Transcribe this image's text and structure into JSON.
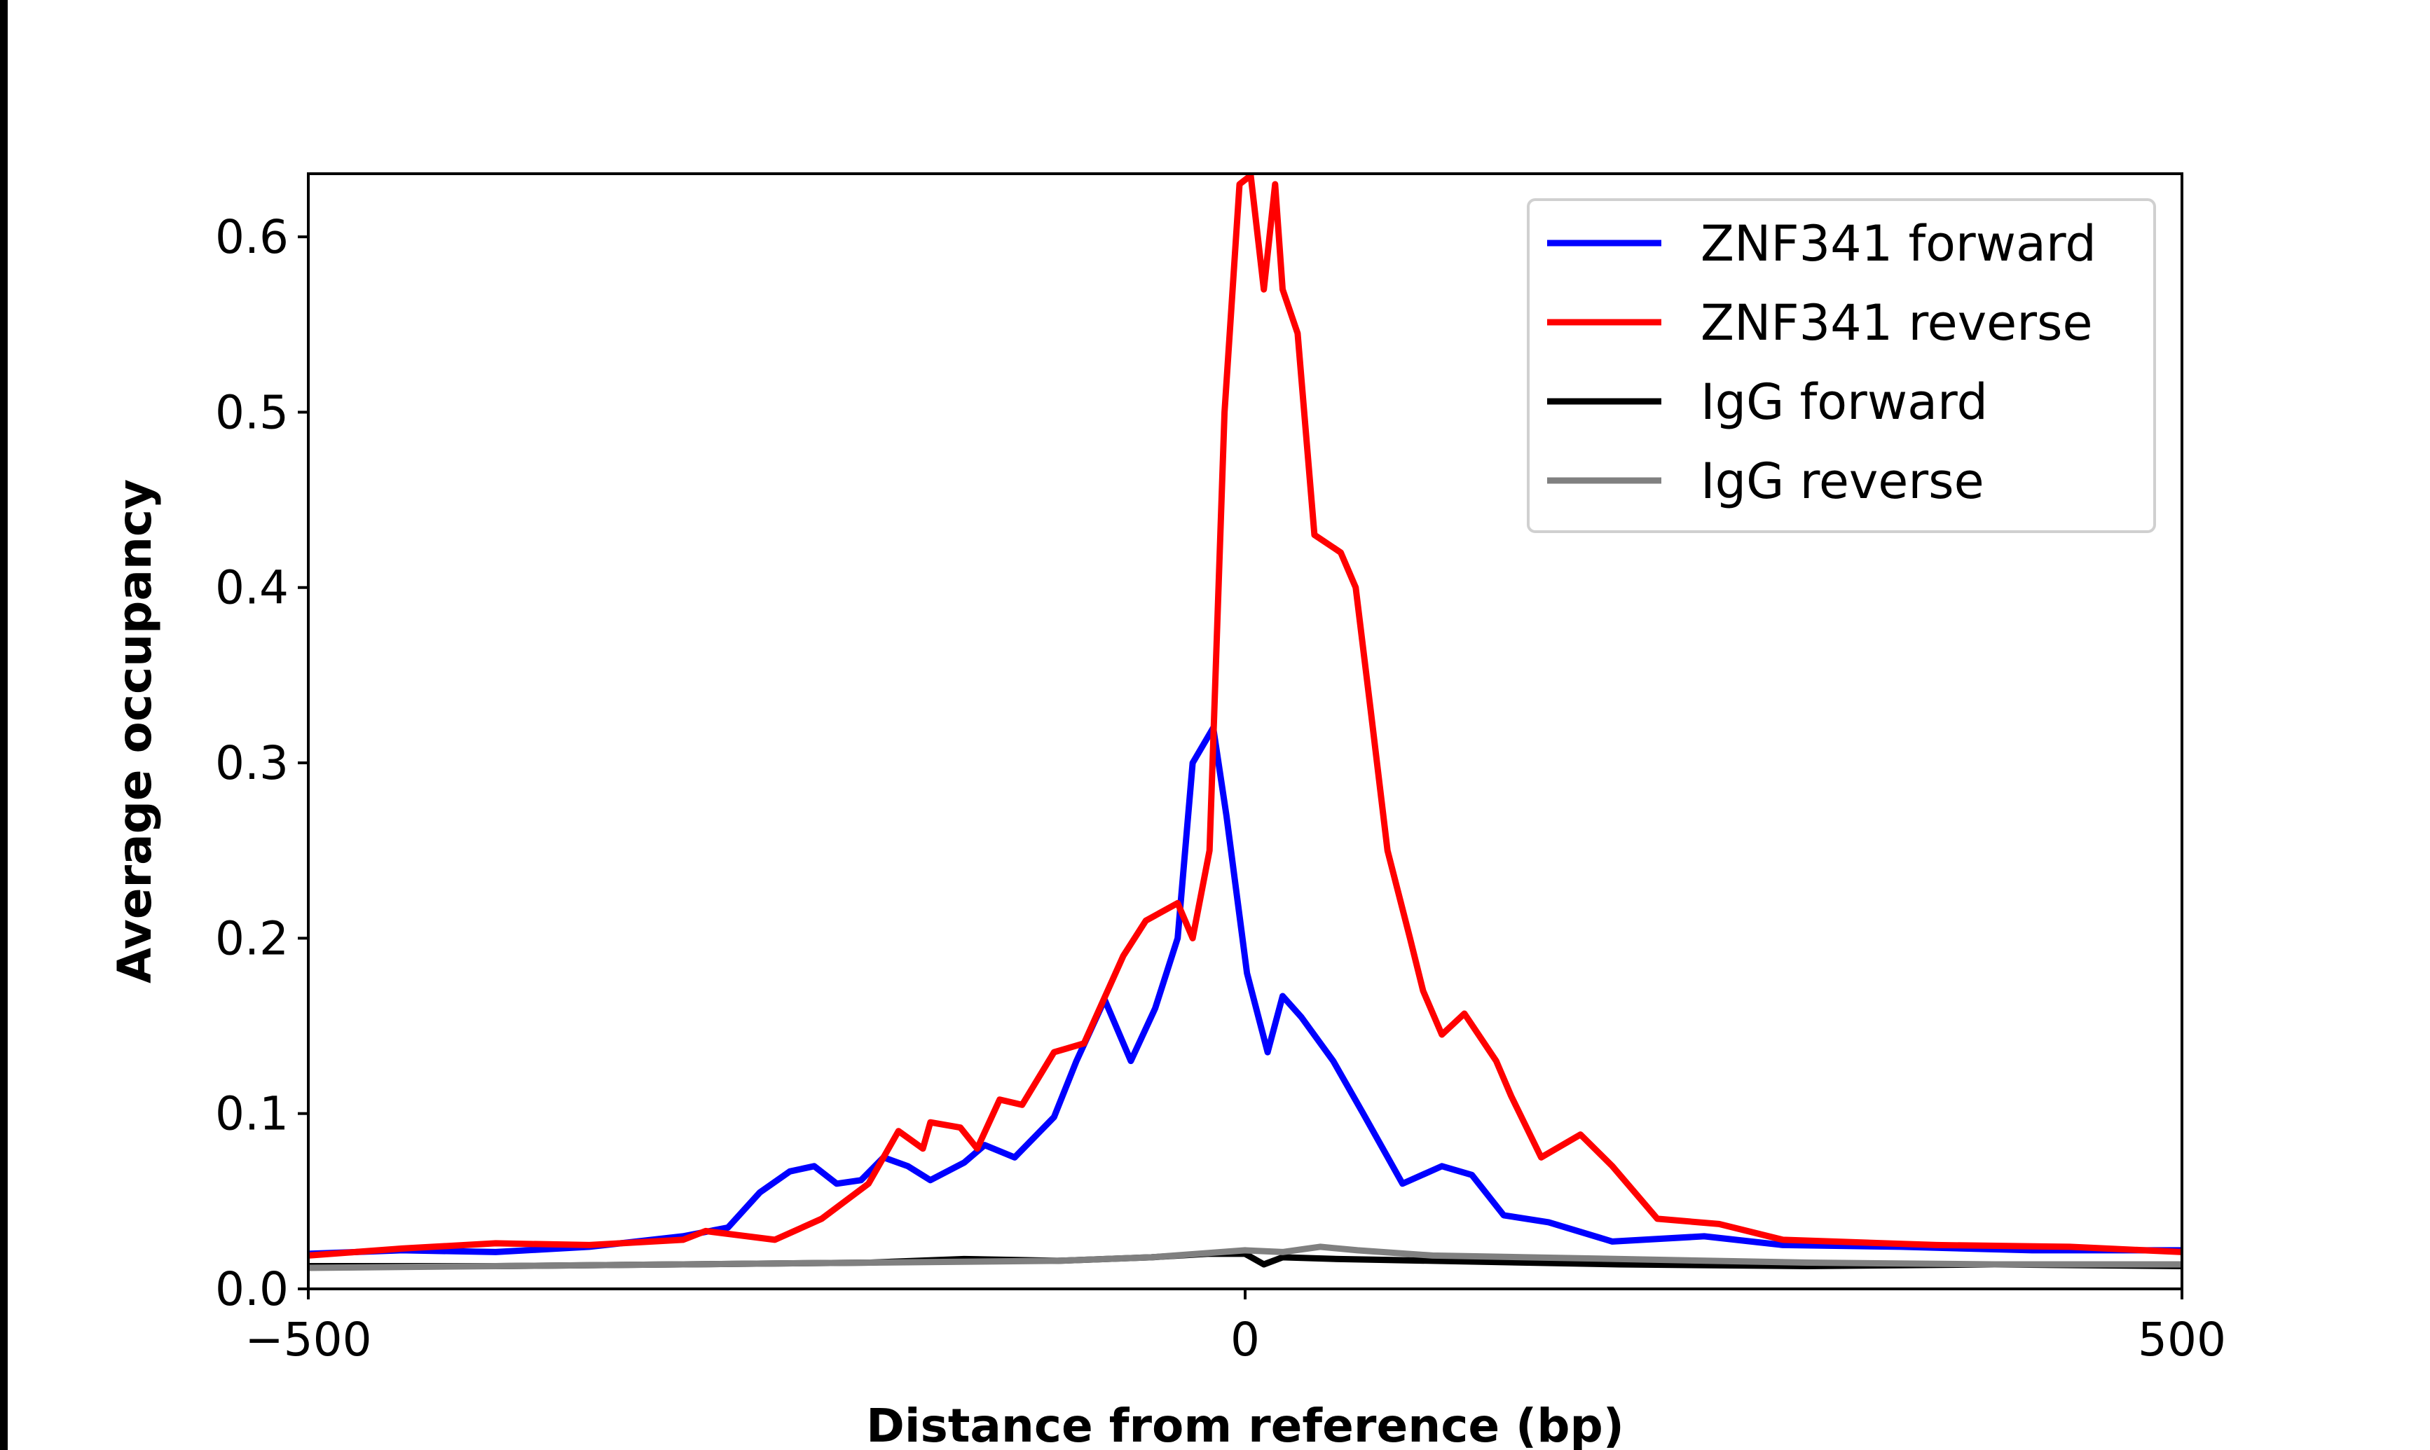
{
  "chart_data": {
    "type": "line",
    "title": "",
    "xlabel": "Distance from reference (bp)",
    "ylabel": "Average occupancy",
    "xlim": [
      -500,
      500
    ],
    "ylim": [
      0,
      0.636
    ],
    "xticks": [
      -500,
      0,
      500
    ],
    "xtick_labels": [
      "−500",
      "0",
      "500"
    ],
    "yticks": [
      0.0,
      0.1,
      0.2,
      0.3,
      0.4,
      0.5,
      0.6
    ],
    "ytick_labels": [
      "0.0",
      "0.1",
      "0.2",
      "0.3",
      "0.4",
      "0.5",
      "0.6"
    ],
    "grid": false,
    "legend_placement": "upper right",
    "series": [
      {
        "name": "ZNF341 forward",
        "color": "#0000ff",
        "x": [
          -500,
          -450,
          -400,
          -350,
          -300,
          -276,
          -259,
          -243,
          -230,
          -218,
          -205,
          -193,
          -180,
          -168,
          -150,
          -139,
          -123,
          -102,
          -90,
          -75,
          -61,
          -48,
          -36,
          -28,
          -17,
          -10,
          1,
          12,
          20,
          30,
          47,
          63,
          84,
          105,
          121,
          138,
          162,
          196,
          245,
          287,
          350,
          420,
          500
        ],
        "y": [
          0.02,
          0.022,
          0.021,
          0.024,
          0.03,
          0.035,
          0.055,
          0.067,
          0.07,
          0.06,
          0.062,
          0.075,
          0.07,
          0.062,
          0.072,
          0.082,
          0.075,
          0.098,
          0.13,
          0.165,
          0.13,
          0.16,
          0.2,
          0.3,
          0.32,
          0.27,
          0.18,
          0.135,
          0.167,
          0.155,
          0.13,
          0.1,
          0.06,
          0.07,
          0.065,
          0.042,
          0.038,
          0.027,
          0.03,
          0.025,
          0.024,
          0.022,
          0.022
        ]
      },
      {
        "name": "ZNF341 reverse",
        "color": "#ff0000",
        "x": [
          -500,
          -450,
          -400,
          -350,
          -300,
          -288,
          -251,
          -226,
          -201,
          -185,
          -172,
          -168,
          -152,
          -143,
          -131,
          -119,
          -102,
          -86,
          -65,
          -53,
          -36,
          -28,
          -19,
          -11,
          -3,
          3,
          10,
          16,
          20,
          28,
          37,
          51,
          59,
          67,
          76,
          88,
          95,
          105,
          117,
          134,
          142,
          158,
          179,
          196,
          220,
          253,
          287,
          369,
          440,
          500
        ],
        "y": [
          0.019,
          0.023,
          0.026,
          0.025,
          0.028,
          0.033,
          0.028,
          0.04,
          0.06,
          0.09,
          0.08,
          0.095,
          0.092,
          0.08,
          0.108,
          0.105,
          0.135,
          0.14,
          0.19,
          0.21,
          0.22,
          0.2,
          0.25,
          0.5,
          0.63,
          0.635,
          0.57,
          0.63,
          0.57,
          0.545,
          0.43,
          0.42,
          0.4,
          0.33,
          0.25,
          0.2,
          0.17,
          0.145,
          0.157,
          0.13,
          0.11,
          0.075,
          0.088,
          0.07,
          0.04,
          0.037,
          0.028,
          0.025,
          0.024,
          0.021
        ]
      },
      {
        "name": "IgG forward",
        "color": "#000000",
        "x": [
          -500,
          -400,
          -300,
          -200,
          -150,
          -100,
          -50,
          -20,
          0,
          10,
          20,
          50,
          100,
          200,
          300,
          400,
          500
        ],
        "y": [
          0.013,
          0.013,
          0.014,
          0.015,
          0.017,
          0.016,
          0.018,
          0.02,
          0.02,
          0.014,
          0.018,
          0.017,
          0.016,
          0.014,
          0.013,
          0.014,
          0.013
        ]
      },
      {
        "name": "IgG reverse",
        "color": "#808080",
        "x": [
          -500,
          -400,
          -300,
          -200,
          -100,
          -50,
          0,
          20,
          40,
          60,
          100,
          150,
          200,
          300,
          400,
          500
        ],
        "y": [
          0.012,
          0.013,
          0.014,
          0.015,
          0.016,
          0.018,
          0.022,
          0.021,
          0.024,
          0.022,
          0.019,
          0.018,
          0.017,
          0.015,
          0.014,
          0.014
        ]
      }
    ]
  }
}
